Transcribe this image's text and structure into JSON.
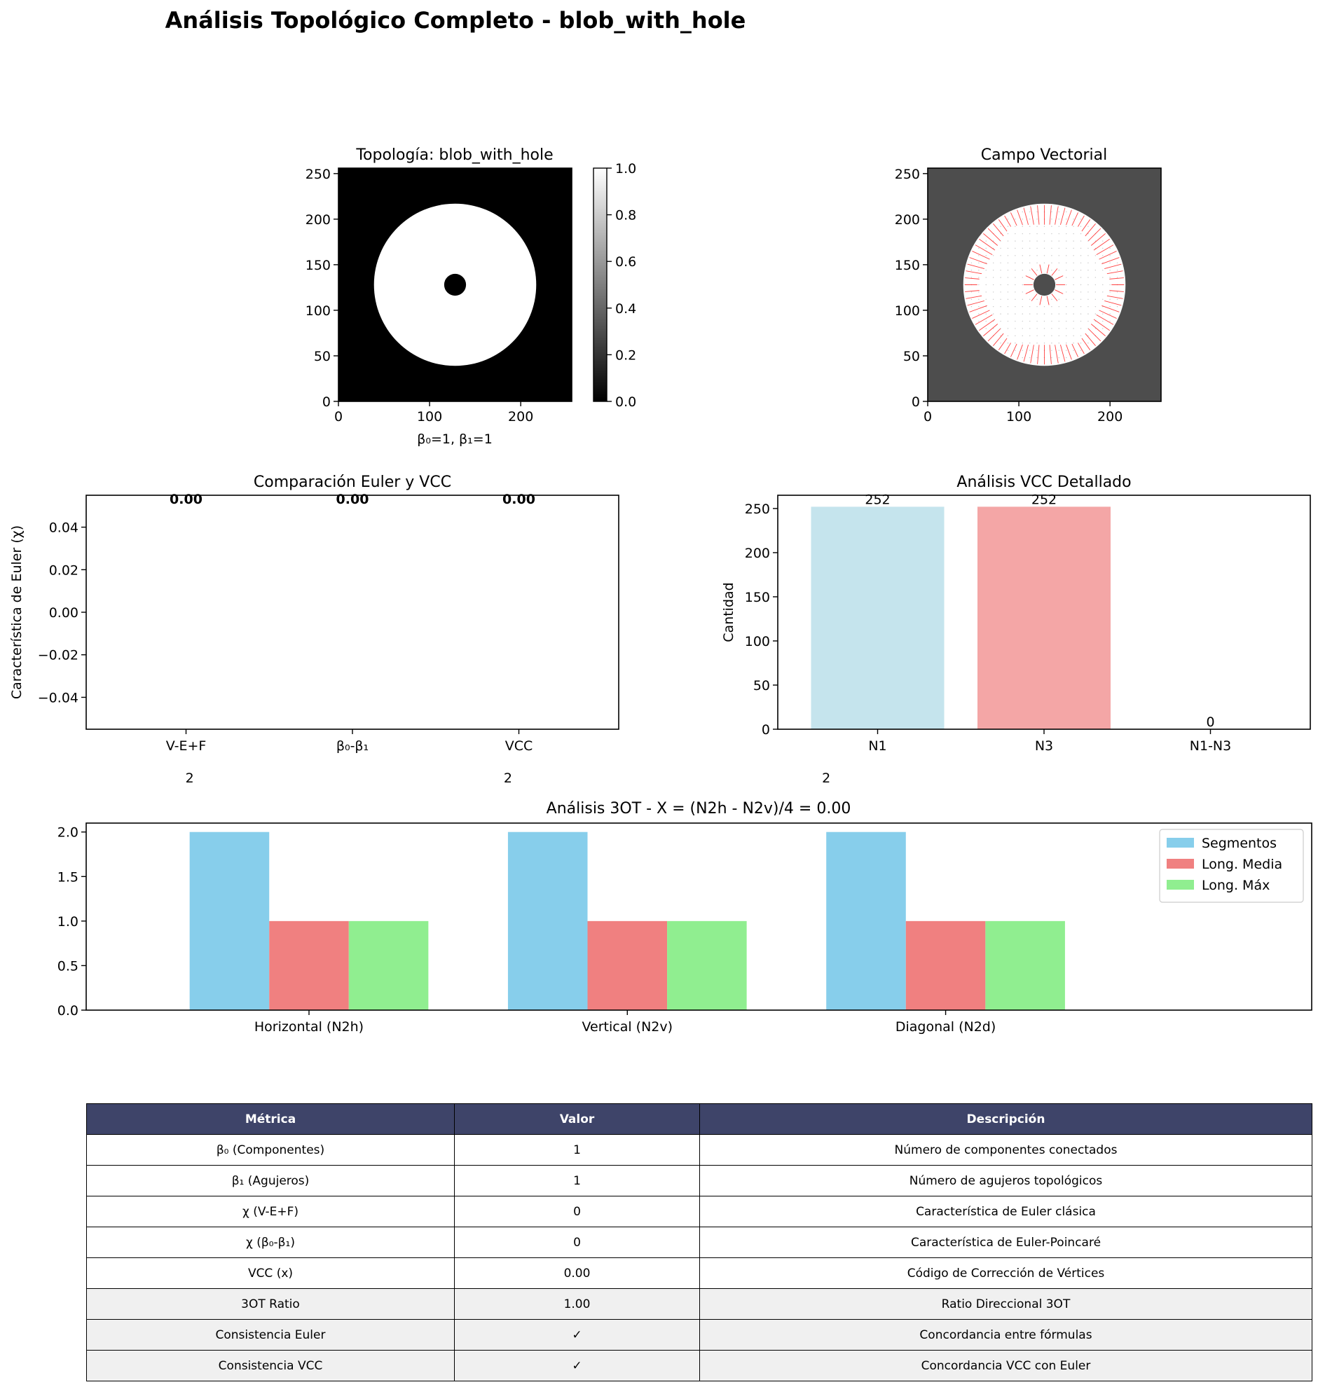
{
  "figure_title": "Análisis Topológico Completo - blob_with_hole",
  "chart_data": [
    {
      "type": "image",
      "title": "Topología: blob_with_hole",
      "xlabel": "β₀=1, β₁=1",
      "ylabel": "",
      "xlim": [
        0,
        256
      ],
      "ylim": [
        0,
        256
      ],
      "xticks": [
        "0",
        "100",
        "200"
      ],
      "yticks": [
        "0",
        "50",
        "100",
        "150",
        "200",
        "250"
      ],
      "image": {
        "description": "filled disk with a small hole, binary mask",
        "disk_center": [
          128,
          128
        ],
        "disk_radius": 89,
        "hole_radius": 12,
        "background_value": 0,
        "disk_value": 1
      },
      "colorbar": {
        "range": [
          0,
          1
        ],
        "ticks": [
          "0.0",
          "0.2",
          "0.4",
          "0.6",
          "0.8",
          "1.0"
        ],
        "colormap": "gray"
      }
    },
    {
      "type": "quiver",
      "title": "Campo Vectorial",
      "xlabel": "",
      "ylabel": "",
      "xlim": [
        0,
        256
      ],
      "ylim": [
        0,
        256
      ],
      "xticks": [
        "0",
        "100",
        "200"
      ],
      "yticks": [
        "0",
        "50",
        "100",
        "150",
        "200",
        "250"
      ],
      "background_color": "#4d4d4d",
      "disk_color": "#ffffff",
      "arrow_color": "#ff0000",
      "disk_center": [
        128,
        128
      ],
      "disk_radius": 89,
      "hole_radius": 12
    },
    {
      "type": "bar",
      "title": "Comparación Euler y VCC",
      "ylabel": "Característica de Euler (χ)",
      "categories": [
        "V-E+F",
        "β₀-β₁",
        "VCC"
      ],
      "values": [
        0.0,
        0.0,
        0.0
      ],
      "value_labels": [
        "0.00",
        "0.00",
        "0.00"
      ],
      "ylim": [
        -0.055,
        0.055
      ],
      "yticks": [
        "−0.04",
        "−0.02",
        "0.00",
        "0.02",
        "0.04"
      ]
    },
    {
      "type": "bar",
      "title": "Análisis VCC Detallado",
      "ylabel": "Cantidad",
      "categories": [
        "N1",
        "N3",
        "N1-N3"
      ],
      "values": [
        252,
        252,
        0
      ],
      "value_labels": [
        "252",
        "252",
        "0"
      ],
      "colors": [
        "#add8e6",
        "#f08080",
        "#90ee90"
      ],
      "ylim": [
        0,
        265
      ],
      "yticks": [
        "0",
        "50",
        "100",
        "150",
        "200",
        "250"
      ]
    },
    {
      "type": "bar",
      "title": "Análisis 3OT - X = (N2h - N2v)/4 = 0.00",
      "categories": [
        "Horizontal (N2h)",
        "Vertical (N2v)",
        "Diagonal (N2d)"
      ],
      "category_top_labels": [
        "2",
        "2",
        "2"
      ],
      "series": [
        {
          "name": "Segmentos",
          "values": [
            2,
            2,
            2
          ],
          "color": "#87ceeb"
        },
        {
          "name": "Long. Media",
          "values": [
            1,
            1,
            1
          ],
          "color": "#f08080"
        },
        {
          "name": "Long. Máx",
          "values": [
            1,
            1,
            1
          ],
          "color": "#90ee90"
        }
      ],
      "ylim": [
        0,
        2.1
      ],
      "yticks": [
        "0.0",
        "0.5",
        "1.0",
        "1.5",
        "2.0"
      ],
      "legend": "top-right"
    }
  ],
  "table": {
    "headers": [
      "Métrica",
      "Valor",
      "Descripción"
    ],
    "rows": [
      [
        "β₀ (Componentes)",
        "1",
        "Número de componentes conectados"
      ],
      [
        "β₁ (Agujeros)",
        "1",
        "Número de agujeros topológicos"
      ],
      [
        "χ (V-E+F)",
        "0",
        "Característica de Euler clásica"
      ],
      [
        "χ (β₀-β₁)",
        "0",
        "Característica de Euler-Poincaré"
      ],
      [
        "VCC (x)",
        "0.00",
        "Código de Corrección de Vértices"
      ],
      [
        "3OT Ratio",
        "1.00",
        "Ratio Direccional 3OT"
      ],
      [
        "Consistencia Euler",
        "✓",
        "Concordancia entre fórmulas"
      ],
      [
        "Consistencia VCC",
        "✓",
        "Concordancia VCC con Euler"
      ]
    ],
    "shaded_rows": [
      5,
      6,
      7
    ],
    "header_color": "#3e4469",
    "shaded_color": "#f0f0f0"
  }
}
